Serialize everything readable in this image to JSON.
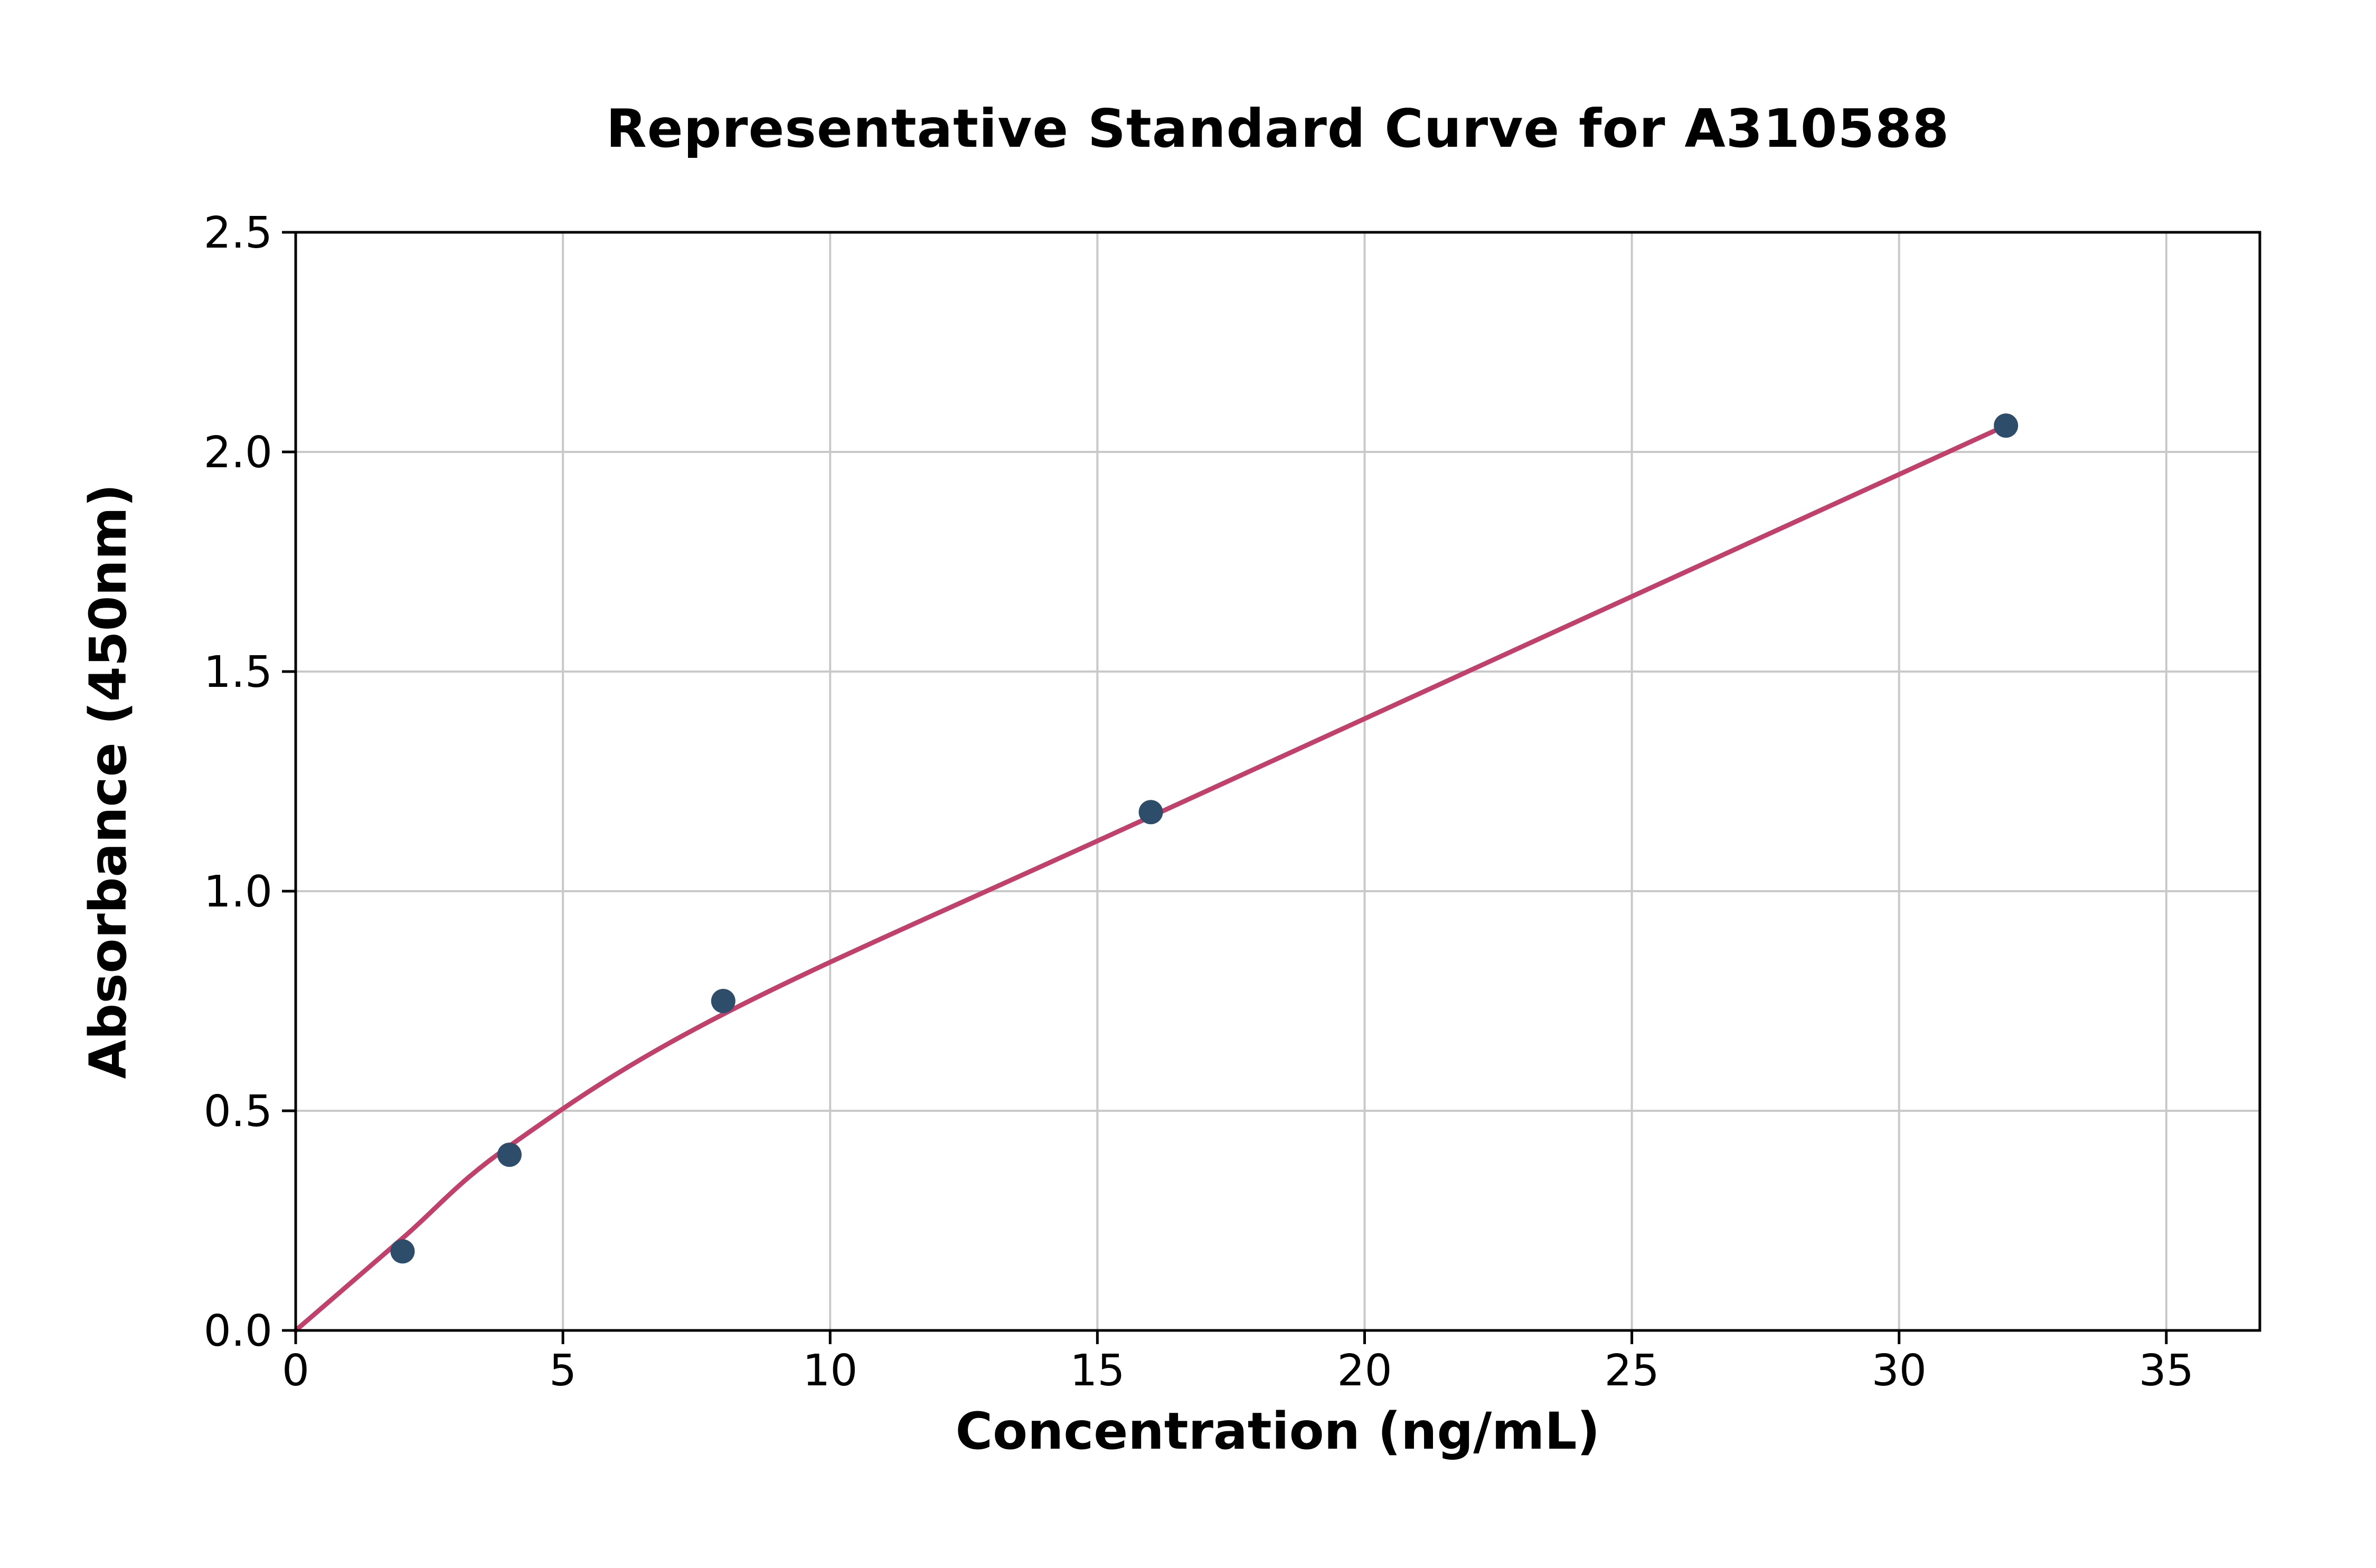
{
  "page": {
    "background_color": "#ffffff"
  },
  "chart_data": {
    "type": "scatter",
    "title": "Representative Standard Curve for A310588",
    "xlabel": "Concentration (ng/mL)",
    "ylabel": "Absorbance (450nm)",
    "xlim": [
      0,
      36.75
    ],
    "ylim": [
      0,
      2.5
    ],
    "xticks": [
      0,
      5,
      10,
      15,
      20,
      25,
      30,
      35
    ],
    "xtick_labels": [
      "0",
      "5",
      "10",
      "15",
      "20",
      "25",
      "30",
      "35"
    ],
    "yticks": [
      0.0,
      0.5,
      1.0,
      1.5,
      2.0,
      2.5
    ],
    "ytick_labels": [
      "0.0",
      "0.5",
      "1.0",
      "1.5",
      "2.0",
      "2.5"
    ],
    "grid": true,
    "grid_color": "#c9c9c9",
    "axis_color": "#000000",
    "legend": "none",
    "series": [
      {
        "name": "standard-points",
        "type": "scatter",
        "x": [
          2,
          4,
          8,
          16,
          32
        ],
        "y": [
          0.18,
          0.4,
          0.75,
          1.18,
          2.06
        ],
        "color": "#2e4d6b",
        "marker": "circle",
        "marker_radius": 23
      },
      {
        "name": "fit-curve",
        "type": "line",
        "smooth": true,
        "x": [
          0,
          2,
          4,
          8,
          16,
          32
        ],
        "y": [
          0.0,
          0.21,
          0.42,
          0.72,
          1.17,
          2.06
        ],
        "color": "#c0426c",
        "width": 9
      }
    ]
  }
}
